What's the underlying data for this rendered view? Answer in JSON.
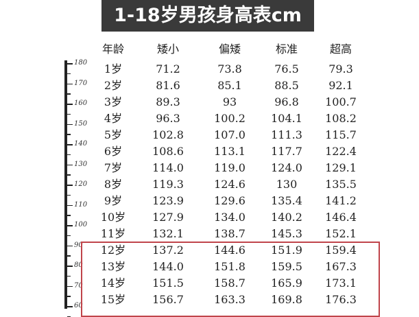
{
  "title": "1-18岁男孩身高表cm",
  "ruler_labels": [
    "180",
    "170",
    "160",
    "150",
    "140",
    "130",
    "120",
    "110",
    "100",
    "90",
    "80",
    "70",
    "60"
  ],
  "headers": [
    "年龄",
    "矮小",
    "偏矮",
    "标准",
    "超高"
  ],
  "rows": [
    [
      "1岁",
      "71.2",
      "73.8",
      "76.5",
      "79.3"
    ],
    [
      "2岁",
      "81.6",
      "85.1",
      "88.5",
      "92.1"
    ],
    [
      "3岁",
      "89.3",
      "93",
      "96.8",
      "100.7"
    ],
    [
      "4岁",
      "96.3",
      "100.2",
      "104.1",
      "108.2"
    ],
    [
      "5岁",
      "102.8",
      "107.0",
      "111.3",
      "115.7"
    ],
    [
      "6岁",
      "108.6",
      "113.1",
      "117.7",
      "122.4"
    ],
    [
      "7岁",
      "114.0",
      "119.0",
      "124.0",
      "129.1"
    ],
    [
      "8岁",
      "119.3",
      "124.6",
      "130",
      "135.5"
    ],
    [
      "9岁",
      "123.9",
      "129.6",
      "135.4",
      "141.2"
    ],
    [
      "10岁",
      "127.9",
      "134.0",
      "140.2",
      "146.4"
    ],
    [
      "11岁",
      "132.1",
      "138.7",
      "145.3",
      "152.1"
    ],
    [
      "12岁",
      "137.2",
      "144.6",
      "151.9",
      "159.4"
    ],
    [
      "13岁",
      "144.0",
      "151.8",
      "159.5",
      "167.3"
    ],
    [
      "14岁",
      "151.5",
      "158.7",
      "165.9",
      "173.1"
    ],
    [
      "15岁",
      "156.7",
      "163.3",
      "169.8",
      "176.3"
    ]
  ],
  "highlight_color": "#c0444a"
}
